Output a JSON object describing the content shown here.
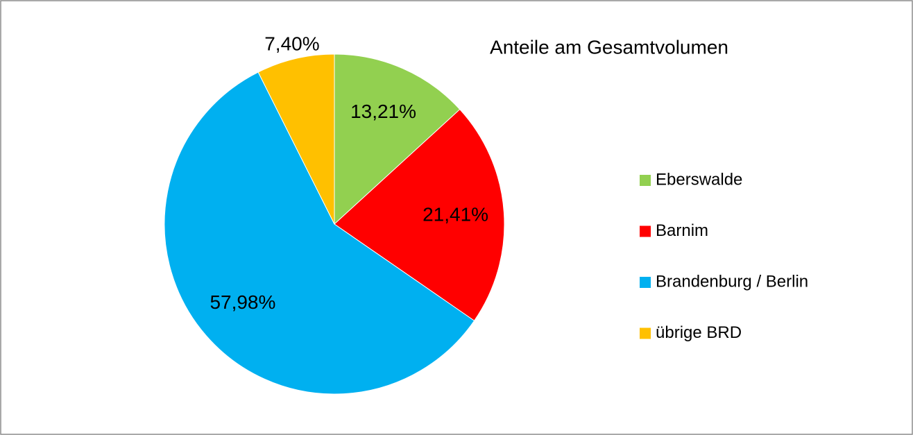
{
  "chart_data": {
    "type": "pie",
    "title": "Anteile am Gesamtvolumen",
    "categories": [
      "Eberswalde",
      "Barnim",
      "Brandenburg / Berlin",
      "übrige BRD"
    ],
    "values": [
      13.21,
      21.41,
      57.98,
      7.4
    ],
    "value_labels": [
      "13,21%",
      "21,41%",
      "57,98%",
      "7,40%"
    ],
    "colors": [
      "#92D050",
      "#FF0000",
      "#00B0F0",
      "#FFC000"
    ],
    "legend": "right"
  }
}
